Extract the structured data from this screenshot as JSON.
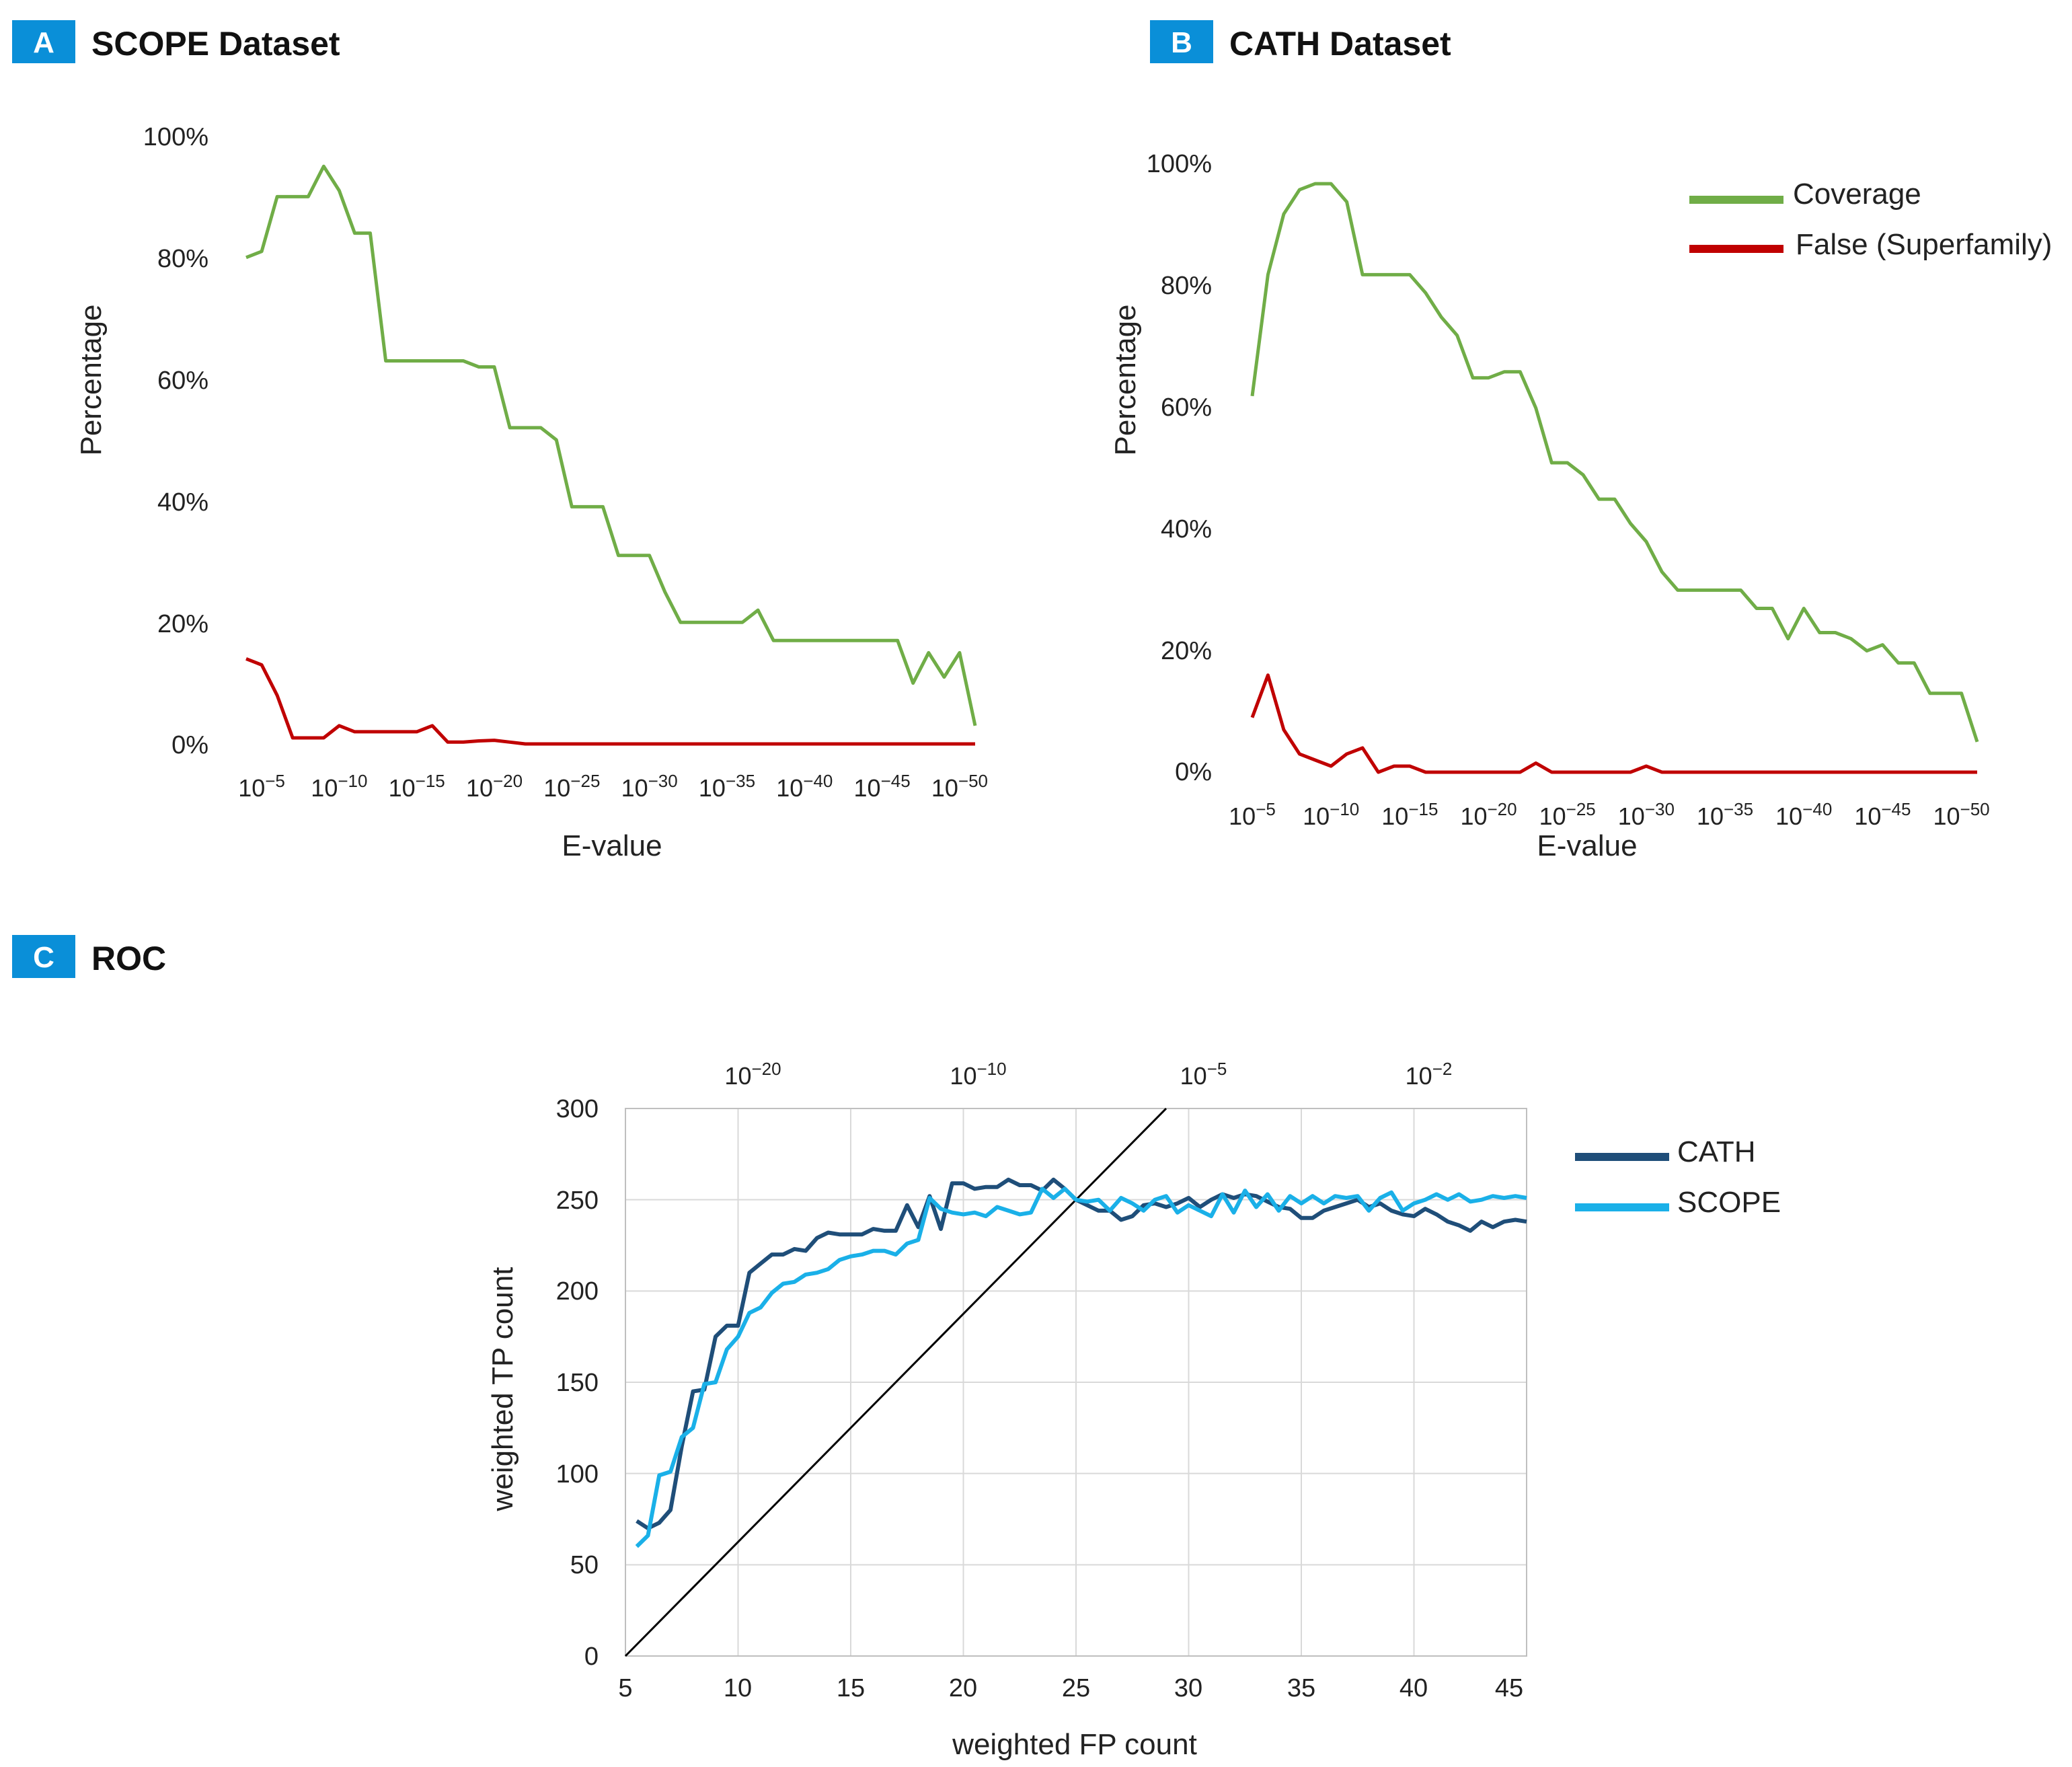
{
  "colors": {
    "coverage": "#70ad47",
    "false_superfamily": "#c00000",
    "cath": "#1f4e79",
    "scope": "#1ab0e8",
    "diagonal": "#000000",
    "badge": "#0a8fd8"
  },
  "chart_data": [
    {
      "id": "A",
      "type": "line",
      "badge": "A",
      "title": "SCOPE Dataset",
      "xlabel": "E-value",
      "ylabel": "Percentage",
      "ylim": [
        0,
        100
      ],
      "yticks": [
        "0%",
        "20%",
        "40%",
        "60%",
        "80%",
        "100%"
      ],
      "xlim": [
        4,
        51
      ],
      "xtick_positions": [
        5,
        10,
        15,
        20,
        25,
        30,
        35,
        40,
        45,
        50
      ],
      "xtick_labels": [
        "10−5",
        "10−10",
        "10−15",
        "10−20",
        "10−25",
        "10−30",
        "10−35",
        "10−40",
        "10−45",
        "10−50"
      ],
      "series": [
        {
          "name": "Coverage",
          "color_key": "coverage",
          "x": [
            4,
            5,
            6,
            7,
            8,
            9,
            10,
            11,
            12,
            13,
            14,
            15,
            16,
            17,
            18,
            19,
            20,
            21,
            22,
            23,
            24,
            25,
            26,
            27,
            28,
            29,
            30,
            31,
            32,
            33,
            34,
            35,
            36,
            37,
            38,
            39,
            40,
            41,
            42,
            43,
            44,
            45,
            46,
            47,
            48,
            49,
            50,
            51
          ],
          "values": [
            80,
            81,
            90,
            90,
            90,
            95,
            91,
            84,
            84,
            63,
            63,
            63,
            63,
            63,
            63,
            62,
            62,
            52,
            52,
            52,
            50,
            39,
            39,
            39,
            31,
            31,
            31,
            25,
            20,
            20,
            20,
            20,
            20,
            22,
            17,
            17,
            17,
            17,
            17,
            17,
            17,
            17,
            17,
            10,
            15,
            11,
            15,
            3
          ]
        },
        {
          "name": "False (Superfamily)",
          "color_key": "false_superfamily",
          "x": [
            4,
            5,
            6,
            7,
            8,
            9,
            10,
            11,
            12,
            13,
            14,
            15,
            16,
            17,
            18,
            19,
            20,
            21,
            22,
            23,
            24,
            25,
            26,
            27,
            28,
            29,
            30,
            31,
            32,
            33,
            34,
            35,
            36,
            37,
            38,
            39,
            40,
            41,
            42,
            43,
            44,
            45,
            46,
            47,
            48,
            49,
            50,
            51
          ],
          "values": [
            14,
            13,
            8,
            1,
            1,
            1,
            3,
            2,
            2,
            2,
            2,
            2,
            3,
            0.3,
            0.3,
            0.5,
            0.6,
            0.3,
            0,
            0,
            0,
            0,
            0,
            0,
            0,
            0,
            0,
            0,
            0,
            0,
            0,
            0,
            0,
            0,
            0,
            0,
            0,
            0,
            0,
            0,
            0,
            0,
            0,
            0,
            0,
            0,
            0,
            0
          ]
        }
      ]
    },
    {
      "id": "B",
      "type": "line",
      "badge": "B",
      "title": "CATH Dataset",
      "xlabel": "E-value",
      "ylabel": "Percentage",
      "ylim": [
        0,
        100
      ],
      "yticks": [
        "0%",
        "20%",
        "40%",
        "60%",
        "80%",
        "100%"
      ],
      "xlim": [
        5,
        51
      ],
      "xtick_positions": [
        5,
        10,
        15,
        20,
        25,
        30,
        35,
        40,
        45,
        50
      ],
      "xtick_labels": [
        "10−5",
        "10−10",
        "10−15",
        "10−20",
        "10−25",
        "10−30",
        "10−35",
        "10−40",
        "10−45",
        "10−50"
      ],
      "legend": [
        "Coverage",
        "False (Superfamily)"
      ],
      "legend_position": "top-right",
      "series": [
        {
          "name": "Coverage",
          "color_key": "coverage",
          "x": [
            5,
            6,
            7,
            8,
            9,
            10,
            11,
            12,
            13,
            14,
            15,
            16,
            17,
            18,
            19,
            20,
            21,
            22,
            23,
            24,
            25,
            26,
            27,
            28,
            29,
            30,
            31,
            32,
            33,
            34,
            35,
            36,
            37,
            38,
            39,
            40,
            41,
            42,
            43,
            44,
            45,
            46,
            47,
            48,
            49,
            50,
            51
          ],
          "values": [
            62,
            82,
            92,
            96,
            97,
            97,
            94,
            82,
            82,
            82,
            82,
            79,
            75,
            72,
            65,
            65,
            66,
            66,
            60,
            51,
            51,
            49,
            45,
            45,
            41,
            38,
            33,
            30,
            30,
            30,
            30,
            30,
            27,
            27,
            22,
            27,
            23,
            23,
            22,
            20,
            21,
            18,
            18,
            13,
            13,
            13,
            5
          ]
        },
        {
          "name": "False (Superfamily)",
          "color_key": "false_superfamily",
          "x": [
            5,
            6,
            7,
            8,
            9,
            10,
            11,
            12,
            13,
            14,
            15,
            16,
            17,
            18,
            19,
            20,
            21,
            22,
            23,
            24,
            25,
            26,
            27,
            28,
            29,
            30,
            31,
            32,
            33,
            34,
            35,
            36,
            37,
            38,
            39,
            40,
            41,
            42,
            43,
            44,
            45,
            46,
            47,
            48,
            49,
            50,
            51
          ],
          "values": [
            9,
            16,
            7,
            3,
            2,
            1,
            3,
            4,
            0,
            1,
            1,
            0,
            0,
            0,
            0,
            0,
            0,
            0,
            1.5,
            0,
            0,
            0,
            0,
            0,
            0,
            1,
            0,
            0,
            0,
            0,
            0,
            0,
            0,
            0,
            0,
            0,
            0,
            0,
            0,
            0,
            0,
            0,
            0,
            0,
            0,
            0,
            0
          ]
        }
      ]
    },
    {
      "id": "C",
      "type": "line",
      "badge": "C",
      "title": "ROC",
      "xlabel": "weighted FP count",
      "ylabel": "weighted TP count",
      "xlim": [
        5,
        45
      ],
      "ylim": [
        0,
        300
      ],
      "xticks": [
        "5",
        "10",
        "15",
        "20",
        "25",
        "30",
        "35",
        "40",
        "45"
      ],
      "yticks": [
        "0",
        "50",
        "100",
        "150",
        "200",
        "250",
        "300"
      ],
      "top_axis_positions": [
        10,
        20,
        30,
        40
      ],
      "top_axis_labels": [
        "10−20",
        "10−10",
        "10−5",
        "10−2"
      ],
      "legend": [
        "CATH",
        "SCOPE"
      ],
      "legend_position": "right",
      "diagonal": {
        "x": [
          5,
          29
        ],
        "y": [
          0,
          300
        ]
      },
      "series": [
        {
          "name": "CATH",
          "color_key": "cath",
          "x": [
            5.5,
            6,
            6.5,
            7,
            7.5,
            8,
            8.5,
            9,
            9.5,
            10,
            10.5,
            11,
            11.5,
            12,
            12.5,
            13,
            13.5,
            14,
            14.5,
            15,
            15.5,
            16,
            16.5,
            17,
            17.5,
            18,
            18.5,
            19,
            19.5,
            20,
            20.5,
            21,
            21.5,
            22,
            22.5,
            23,
            23.5,
            24,
            24.5,
            25,
            25.5,
            26,
            26.5,
            27,
            27.5,
            28,
            28.5,
            29,
            29.5,
            30,
            30.5,
            31,
            31.5,
            32,
            32.5,
            33,
            33.5,
            34,
            34.5,
            35,
            35.5,
            36,
            36.5,
            37,
            37.5,
            38,
            38.5,
            39,
            39.5,
            40,
            40.5,
            41,
            41.5,
            42,
            42.5,
            43,
            43.5,
            44,
            44.5,
            45
          ],
          "values": [
            74,
            70,
            73,
            80,
            115,
            145,
            146,
            175,
            181,
            181,
            210,
            215,
            220,
            220,
            223,
            222,
            229,
            232,
            231,
            231,
            231,
            234,
            233,
            233,
            247,
            235,
            252,
            234,
            259,
            259,
            256,
            257,
            257,
            261,
            258,
            258,
            255,
            261,
            256,
            250,
            247,
            244,
            244,
            239,
            241,
            247,
            248,
            246,
            248,
            251,
            246,
            250,
            253,
            251,
            253,
            252,
            249,
            246,
            245,
            240,
            240,
            244,
            246,
            248,
            250,
            246,
            248,
            244,
            242,
            241,
            245,
            242,
            238,
            236,
            233,
            238,
            235,
            238,
            239,
            238
          ]
        },
        {
          "name": "SCOPE",
          "color_key": "scope",
          "x": [
            5.5,
            6,
            6.5,
            7,
            7.5,
            8,
            8.5,
            9,
            9.5,
            10,
            10.5,
            11,
            11.5,
            12,
            12.5,
            13,
            13.5,
            14,
            14.5,
            15,
            15.5,
            16,
            16.5,
            17,
            17.5,
            18,
            18.5,
            19,
            19.5,
            20,
            20.5,
            21,
            21.5,
            22,
            22.5,
            23,
            23.5,
            24,
            24.5,
            25,
            25.5,
            26,
            26.5,
            27,
            27.5,
            28,
            28.5,
            29,
            29.5,
            30,
            30.5,
            31,
            31.5,
            32,
            32.5,
            33,
            33.5,
            34,
            34.5,
            35,
            35.5,
            36,
            36.5,
            37,
            37.5,
            38,
            38.5,
            39,
            39.5,
            40,
            40.5,
            41,
            41.5,
            42,
            42.5,
            43,
            43.5,
            44,
            44.5,
            45
          ],
          "values": [
            60,
            66,
            99,
            101,
            120,
            125,
            149,
            150,
            168,
            175,
            188,
            191,
            199,
            204,
            205,
            209,
            210,
            212,
            217,
            219,
            220,
            222,
            222,
            220,
            226,
            228,
            251,
            245,
            243,
            242,
            243,
            241,
            246,
            244,
            242,
            243,
            256,
            251,
            256,
            250,
            249,
            250,
            244,
            251,
            248,
            244,
            250,
            252,
            243,
            247,
            244,
            241,
            253,
            243,
            255,
            246,
            253,
            244,
            252,
            248,
            252,
            248,
            252,
            251,
            252,
            244,
            251,
            254,
            244,
            248,
            250,
            253,
            250,
            253,
            249,
            250,
            252,
            251,
            252,
            251
          ]
        }
      ]
    }
  ]
}
